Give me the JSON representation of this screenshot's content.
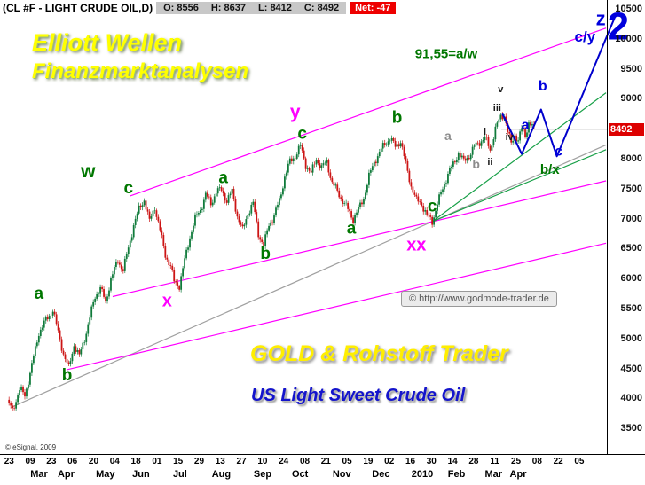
{
  "header": {
    "symbol": "(CL #F - LIGHT CRUDE OIL,D)",
    "open_label": "O: 8556",
    "high_label": "H: 8637",
    "low_label": "L: 8412",
    "close_label": "C: 8492",
    "net_label": "Net: -47"
  },
  "watermarks": {
    "brand_line1": "Elliott Wellen",
    "brand_line2": "Finanzmarktanalysen",
    "gold_trader": "GOLD & Rohstoff Trader",
    "instrument": "US Light Sweet Crude Oil",
    "site_badge": "© http://www.godmode-trader.de",
    "esignal_credit": "© eSignal, 2009"
  },
  "chart_data": {
    "type": "candlestick",
    "title": "CL #F - Light Crude Oil, Daily — Elliott wave analysis",
    "x_unit": "trading-day index, 0 = first bar (Feb-2009) to 300 = last bar (Apr-2010)",
    "ylim": [
      3500,
      10500
    ],
    "y_ticks": [
      10500,
      10000,
      9500,
      9000,
      8500,
      8000,
      7500,
      7000,
      6500,
      6000,
      5500,
      5000,
      4500,
      4000,
      3500
    ],
    "last_price": 8492,
    "last_price_text": "8492",
    "colors": {
      "candle_up": "#0f7a3a",
      "candle_down": "#cc1414",
      "projection": "#0000cc",
      "current_price_line": "#444444"
    },
    "label_colors": {
      "g": "#007700",
      "m": "#ff00ff",
      "b": "#0000dd",
      "k": "#1a1a1a",
      "gy": "#8c8c8c"
    },
    "price_path": [
      [
        0,
        3950
      ],
      [
        3,
        3800
      ],
      [
        7,
        4150
      ],
      [
        10,
        4050
      ],
      [
        14,
        4550
      ],
      [
        18,
        5100
      ],
      [
        22,
        5300
      ],
      [
        26,
        5480
      ],
      [
        29,
        5100
      ],
      [
        32,
        4750
      ],
      [
        35,
        4500
      ],
      [
        38,
        4900
      ],
      [
        41,
        4700
      ],
      [
        44,
        5000
      ],
      [
        47,
        5350
      ],
      [
        50,
        5700
      ],
      [
        53,
        5850
      ],
      [
        56,
        5600
      ],
      [
        59,
        6000
      ],
      [
        63,
        6300
      ],
      [
        66,
        6150
      ],
      [
        69,
        6500
      ],
      [
        72,
        6900
      ],
      [
        75,
        7150
      ],
      [
        78,
        7320
      ],
      [
        81,
        6950
      ],
      [
        84,
        7200
      ],
      [
        87,
        6800
      ],
      [
        90,
        6400
      ],
      [
        93,
        6200
      ],
      [
        95,
        5950
      ],
      [
        98,
        5880
      ],
      [
        101,
        6300
      ],
      [
        104,
        6700
      ],
      [
        107,
        7000
      ],
      [
        110,
        7150
      ],
      [
        113,
        7400
      ],
      [
        116,
        7250
      ],
      [
        119,
        7450
      ],
      [
        122,
        7480
      ],
      [
        125,
        7300
      ],
      [
        128,
        7450
      ],
      [
        131,
        7050
      ],
      [
        134,
        6800
      ],
      [
        137,
        7100
      ],
      [
        140,
        7250
      ],
      [
        143,
        6750
      ],
      [
        146,
        6550
      ],
      [
        149,
        6900
      ],
      [
        152,
        7050
      ],
      [
        155,
        7300
      ],
      [
        158,
        7700
      ],
      [
        161,
        7950
      ],
      [
        164,
        8050
      ],
      [
        167,
        8210
      ],
      [
        170,
        7900
      ],
      [
        173,
        7750
      ],
      [
        176,
        8000
      ],
      [
        179,
        7850
      ],
      [
        182,
        7950
      ],
      [
        185,
        7600
      ],
      [
        188,
        7450
      ],
      [
        191,
        7300
      ],
      [
        194,
        7150
      ],
      [
        197,
        7000
      ],
      [
        200,
        7150
      ],
      [
        203,
        7350
      ],
      [
        206,
        7700
      ],
      [
        209,
        7950
      ],
      [
        212,
        8100
      ],
      [
        215,
        8250
      ],
      [
        218,
        8340
      ],
      [
        221,
        8200
      ],
      [
        224,
        8300
      ],
      [
        227,
        7900
      ],
      [
        230,
        7550
      ],
      [
        233,
        7300
      ],
      [
        236,
        7250
      ],
      [
        239,
        7050
      ],
      [
        242,
        6950
      ],
      [
        245,
        7250
      ],
      [
        248,
        7500
      ],
      [
        251,
        7750
      ],
      [
        254,
        7900
      ],
      [
        257,
        8100
      ],
      [
        260,
        7950
      ],
      [
        263,
        8050
      ],
      [
        266,
        8200
      ],
      [
        269,
        8280
      ],
      [
        272,
        8350
      ],
      [
        275,
        8150
      ],
      [
        278,
        8500
      ],
      [
        281,
        8700
      ],
      [
        283,
        8740
      ],
      [
        285,
        8450
      ],
      [
        287,
        8250
      ],
      [
        289,
        8400
      ],
      [
        291,
        8300
      ],
      [
        293,
        8500
      ],
      [
        295,
        8400
      ],
      [
        297,
        8600
      ],
      [
        300,
        8492
      ]
    ],
    "x_axis": {
      "date_ticks": [
        "23",
        "09",
        "23",
        "06",
        "20",
        "04",
        "18",
        "01",
        "15",
        "29",
        "13",
        "27",
        "10",
        "24",
        "08",
        "21",
        "05",
        "19",
        "02",
        "16",
        "30",
        "14",
        "28",
        "11",
        "25",
        "08",
        "22",
        "05"
      ],
      "month_labels": [
        {
          "t": "Mar",
          "f": 0.05
        },
        {
          "t": "Apr",
          "f": 0.095
        },
        {
          "t": "May",
          "f": 0.158
        },
        {
          "t": "Jun",
          "f": 0.218
        },
        {
          "t": "Jul",
          "f": 0.285
        },
        {
          "t": "Aug",
          "f": 0.349
        },
        {
          "t": "Sep",
          "f": 0.418
        },
        {
          "t": "Oct",
          "f": 0.481
        },
        {
          "t": "Nov",
          "f": 0.548
        },
        {
          "t": "Dec",
          "f": 0.613
        },
        {
          "t": "2010",
          "f": 0.678
        },
        {
          "t": "Feb",
          "f": 0.738
        },
        {
          "t": "Mar",
          "f": 0.799
        },
        {
          "t": "Apr",
          "f": 0.84
        }
      ]
    },
    "trendlines": [
      {
        "name": "long-term-support-gray",
        "color": "#a0a0a0",
        "from": [
          2,
          3850
        ],
        "to": [
          341,
          8230
        ]
      },
      {
        "name": "upper-channel-magenta",
        "color": "#ff00ff",
        "from": [
          70,
          7380
        ],
        "to": [
          341,
          10180
        ]
      },
      {
        "name": "mid-channel-magenta",
        "color": "#ff00ff",
        "from": [
          60,
          5700
        ],
        "to": [
          341,
          7630
        ]
      },
      {
        "name": "lower-channel-magenta",
        "color": "#ff00ff",
        "from": [
          34,
          4480
        ],
        "to": [
          341,
          6590
        ]
      },
      {
        "name": "green-fork-upper",
        "color": "#18a048",
        "from": [
          242,
          6950
        ],
        "to": [
          341,
          9100
        ]
      },
      {
        "name": "green-fork-lower",
        "color": "#18a048",
        "from": [
          242,
          6950
        ],
        "to": [
          341,
          8150
        ]
      }
    ],
    "projection": {
      "name": "expected-path-to-z",
      "color": "#0000cc",
      "width": 2,
      "points": [
        [
          282,
          8750
        ],
        [
          293,
          8080
        ],
        [
          304,
          8820
        ],
        [
          313,
          8040
        ],
        [
          347,
          10430
        ]
      ]
    },
    "wave_labels": [
      {
        "t": "a",
        "d": 18,
        "p": 5660,
        "c": "g",
        "s": 19
      },
      {
        "t": "b",
        "d": 34,
        "p": 4300,
        "c": "g",
        "s": 19
      },
      {
        "t": "w",
        "d": 46,
        "p": 7690,
        "c": "g",
        "s": 21
      },
      {
        "t": "c",
        "d": 69,
        "p": 7420,
        "c": "g",
        "s": 19
      },
      {
        "t": "x",
        "d": 91,
        "p": 5540,
        "c": "m",
        "s": 20
      },
      {
        "t": "a",
        "d": 123,
        "p": 7590,
        "c": "g",
        "s": 19
      },
      {
        "t": "b",
        "d": 147,
        "p": 6330,
        "c": "g",
        "s": 19
      },
      {
        "t": "y",
        "d": 164,
        "p": 8680,
        "c": "m",
        "s": 21
      },
      {
        "t": "c",
        "d": 168,
        "p": 8330,
        "c": "g",
        "s": 19
      },
      {
        "t": "a",
        "d": 196,
        "p": 6750,
        "c": "g",
        "s": 19
      },
      {
        "t": "b",
        "d": 222,
        "p": 8600,
        "c": "g",
        "s": 19
      },
      {
        "t": "c",
        "d": 242,
        "p": 7120,
        "c": "g",
        "s": 19
      },
      {
        "t": "xx",
        "d": 233,
        "p": 6470,
        "c": "m",
        "s": 20
      },
      {
        "t": "a",
        "d": 251,
        "p": 8310,
        "c": "gy",
        "s": 14
      },
      {
        "t": "b",
        "d": 267,
        "p": 7840,
        "c": "gy",
        "s": 14
      },
      {
        "t": "i",
        "d": 272,
        "p": 8400,
        "c": "k",
        "s": 11
      },
      {
        "t": "ii",
        "d": 275,
        "p": 7900,
        "c": "k",
        "s": 11
      },
      {
        "t": "iii",
        "d": 279,
        "p": 8800,
        "c": "k",
        "s": 11
      },
      {
        "t": "iv",
        "d": 286,
        "p": 8310,
        "c": "k",
        "s": 11
      },
      {
        "t": "v",
        "d": 281,
        "p": 9110,
        "c": "k",
        "s": 11
      },
      {
        "t": "a",
        "d": 295,
        "p": 8490,
        "c": "b",
        "s": 16
      },
      {
        "t": "b",
        "d": 305,
        "p": 9140,
        "c": "b",
        "s": 16
      },
      {
        "t": "c",
        "d": 314,
        "p": 8050,
        "c": "b",
        "s": 16
      },
      {
        "t": "b/x",
        "d": 309,
        "p": 7750,
        "c": "g",
        "s": 15
      },
      {
        "t": "c/y",
        "d": 329,
        "p": 9950,
        "c": "b",
        "s": 17
      },
      {
        "t": "z",
        "d": 338,
        "p": 10230,
        "c": "b",
        "s": 22
      },
      {
        "t": "2",
        "d": 348,
        "p": 9990,
        "c": "b",
        "s": 44
      },
      {
        "t": "91,55=a/w",
        "d": 250,
        "p": 9680,
        "c": "g",
        "s": 15
      }
    ]
  }
}
